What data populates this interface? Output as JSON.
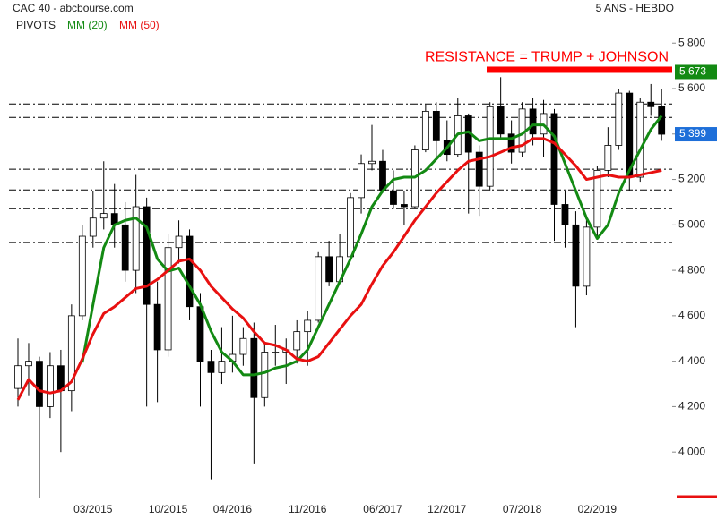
{
  "chart_data": {
    "type": "candlestick",
    "title": "CAC 40 - abcbourse.com",
    "subtitle": "5 ANS - HEBDO",
    "categories": [
      null,
      null,
      null,
      null,
      null,
      null,
      null,
      "03/2015",
      null,
      null,
      null,
      null,
      null,
      null,
      "10/2015",
      null,
      null,
      null,
      null,
      null,
      "04/2016",
      null,
      null,
      null,
      null,
      null,
      null,
      "11/2016",
      null,
      null,
      null,
      null,
      null,
      null,
      "06/2017",
      null,
      null,
      null,
      null,
      null,
      "12/2017",
      null,
      null,
      null,
      null,
      null,
      null,
      "07/2018",
      null,
      null,
      null,
      null,
      null,
      null,
      "02/2019",
      null,
      null,
      null,
      null,
      null,
      null
    ],
    "open": [
      4280,
      4380,
      4400,
      4200,
      4380,
      4270,
      4600,
      4950,
      5030,
      5050,
      5000,
      4800,
      5080,
      4650,
      4450,
      4900,
      4950,
      4640,
      4400,
      4350,
      4400,
      4430,
      4500,
      4240,
      4440,
      4440,
      4450,
      4530,
      4580,
      4860,
      4750,
      4860,
      5120,
      5270,
      5280,
      5150,
      5090,
      5080,
      5330,
      5500,
      5370,
      5310,
      5480,
      5320,
      5170,
      5520,
      5400,
      5320,
      5510,
      5400,
      5490,
      5090,
      5000,
      4730,
      4990,
      5240,
      5350,
      5580,
      5210,
      5540,
      5520
    ],
    "high": [
      4500,
      4480,
      4420,
      4440,
      4450,
      4650,
      5000,
      5150,
      5280,
      5180,
      5100,
      5220,
      5120,
      4750,
      4960,
      5020,
      4980,
      4700,
      4450,
      4550,
      4600,
      4550,
      4570,
      4480,
      4560,
      4500,
      4580,
      4620,
      4880,
      4930,
      4960,
      5140,
      5310,
      5440,
      5330,
      5240,
      5150,
      5350,
      5530,
      5540,
      5460,
      5560,
      5490,
      5350,
      5540,
      5650,
      5460,
      5540,
      5560,
      5550,
      5510,
      5150,
      5060,
      5020,
      5260,
      5430,
      5600,
      5590,
      5560,
      5620,
      5600
    ],
    "low": [
      4200,
      4250,
      3800,
      4150,
      4000,
      4180,
      4580,
      4900,
      4980,
      4900,
      4750,
      4700,
      4200,
      4220,
      4420,
      4830,
      4580,
      4200,
      3880,
      4300,
      4350,
      4380,
      3950,
      4200,
      4380,
      4300,
      4390,
      4380,
      4570,
      4730,
      4740,
      4850,
      5050,
      5240,
      5140,
      5070,
      5000,
      5070,
      5320,
      5300,
      5280,
      5300,
      5050,
      5040,
      5150,
      5380,
      5270,
      5300,
      5350,
      5300,
      4930,
      4900,
      4550,
      4690,
      4950,
      5210,
      5330,
      5150,
      5190,
      5480,
      5370
    ],
    "close": [
      4380,
      4400,
      4200,
      4380,
      4270,
      4600,
      4950,
      5030,
      5050,
      5000,
      4800,
      5080,
      4650,
      4450,
      4900,
      4950,
      4640,
      4400,
      4350,
      4400,
      4430,
      4500,
      4240,
      4440,
      4440,
      4450,
      4530,
      4580,
      4860,
      4750,
      4860,
      5120,
      5270,
      5280,
      5150,
      5090,
      5080,
      5330,
      5500,
      5370,
      5310,
      5480,
      5320,
      5170,
      5520,
      5400,
      5320,
      5510,
      5400,
      5490,
      5090,
      5000,
      4730,
      4990,
      5240,
      5350,
      5580,
      5210,
      5540,
      5520,
      5399
    ],
    "up_color": "#ffffff",
    "down_color": "#000000",
    "series": [
      {
        "name": "MM (20)",
        "color": "#138a13",
        "values": [
          null,
          null,
          null,
          null,
          null,
          null,
          4394,
          4650,
          4900,
          5000,
          5020,
          5030,
          4990,
          4850,
          4796,
          4810,
          4730,
          4650,
          4532,
          4440,
          4400,
          4340,
          4340,
          4350,
          4370,
          4380,
          4400,
          4450,
          4550,
          4650,
          4750,
          4850,
          4960,
          5080,
          5150,
          5200,
          5210,
          5210,
          5240,
          5290,
          5340,
          5400,
          5410,
          5370,
          5380,
          5380,
          5380,
          5400,
          5440,
          5440,
          5390,
          5270,
          5150,
          5030,
          4940,
          5000,
          5140,
          5240,
          5330,
          5420,
          5480
        ]
      },
      {
        "name": "MM (50)",
        "color": "#e81010",
        "values": [
          4230,
          4320,
          4270,
          4260,
          4270,
          4310,
          4410,
          4520,
          4610,
          4640,
          4680,
          4720,
          4730,
          4760,
          4800,
          4840,
          4850,
          4800,
          4730,
          4680,
          4630,
          4590,
          4530,
          4480,
          4470,
          4450,
          4410,
          4400,
          4420,
          4480,
          4540,
          4600,
          4650,
          4740,
          4820,
          4880,
          4950,
          5020,
          5080,
          5140,
          5190,
          5240,
          5280,
          5290,
          5300,
          5320,
          5340,
          5350,
          5380,
          5380,
          5360,
          5310,
          5260,
          5200,
          5210,
          5220,
          5210,
          5210,
          5220,
          5230,
          5240
        ]
      }
    ],
    "pivots": {
      "name": "PIVOTS",
      "color": "#000000",
      "values": [
        5673,
        5532,
        5473,
        5245,
        5154,
        5071,
        4922
      ]
    },
    "annotation": {
      "text": "RESISTANCE = TRUMP + JOHNSON",
      "value": 5673,
      "color": "#ff0000"
    },
    "price_labels": [
      {
        "value": 5673,
        "label": "5 673",
        "color": "#138a13"
      },
      {
        "value": 5399,
        "label": "5 399",
        "color": "#1e6fd9"
      }
    ],
    "ylim": [
      3725,
      5990
    ],
    "yticks": [
      {
        "value": 4000,
        "label": "4 000"
      },
      {
        "value": 4200,
        "label": "4 200"
      },
      {
        "value": 4400,
        "label": "4 400"
      },
      {
        "value": 4600,
        "label": "4 600"
      },
      {
        "value": 4800,
        "label": "4 800"
      },
      {
        "value": 5000,
        "label": "5 000"
      },
      {
        "value": 5200,
        "label": "5 200"
      },
      {
        "value": 5400,
        "label": "5 400"
      },
      {
        "value": 5600,
        "label": "5 600"
      },
      {
        "value": 5800,
        "label": "5 800"
      }
    ],
    "grid": false
  }
}
